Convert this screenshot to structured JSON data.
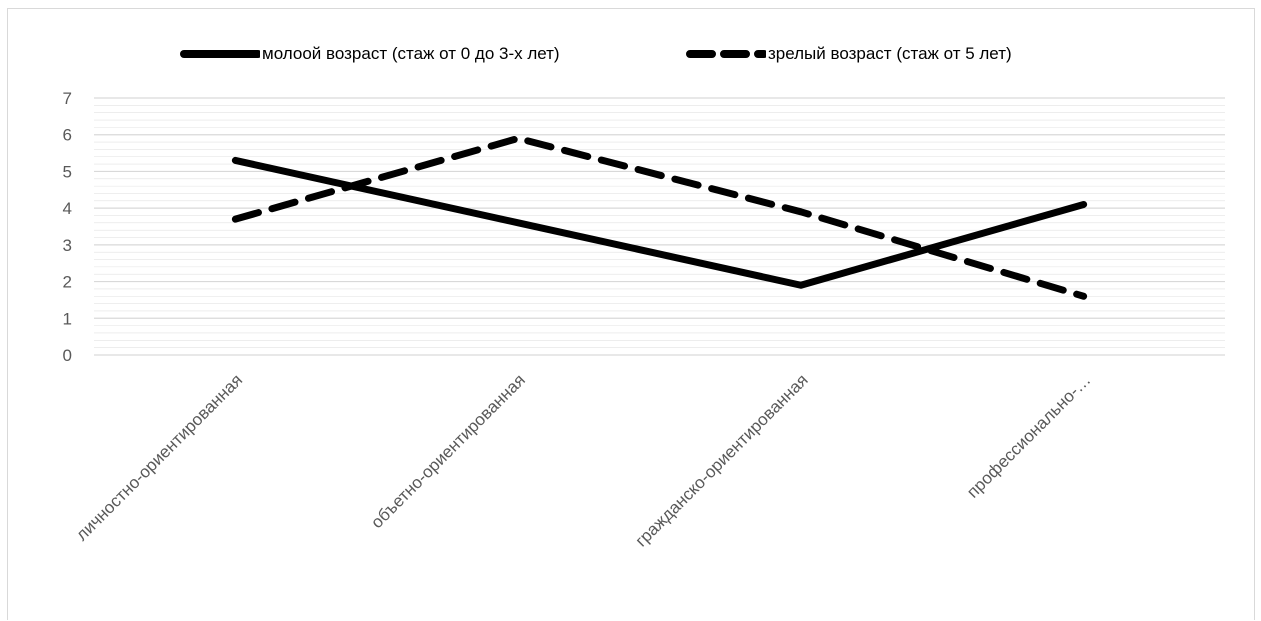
{
  "chart_data": {
    "type": "line",
    "categories": [
      "личностно-ориентированная",
      "объетно-ориентированная",
      "гражданско-ориентированная",
      "профессионально-…"
    ],
    "series": [
      {
        "name": "молоой возраст (стаж от 0 до 3-х лет)",
        "values": [
          5.3,
          3.6,
          1.9,
          4.1
        ],
        "style": "solid",
        "color": "#000000"
      },
      {
        "name": "зрелый возраст (стаж от 5 лет)",
        "values": [
          3.7,
          5.9,
          3.9,
          1.6
        ],
        "style": "dashed",
        "color": "#000000"
      }
    ],
    "yticks": [
      "0",
      "1",
      "2",
      "3",
      "4",
      "5",
      "6",
      "7"
    ],
    "ylim": [
      0,
      7
    ],
    "grid": true,
    "legend_position": "top",
    "title": "",
    "xlabel": "",
    "ylabel": ""
  },
  "colors": {
    "gridline": "#d9d9d9",
    "frame": "#d9d9d9",
    "text": "#000000"
  }
}
